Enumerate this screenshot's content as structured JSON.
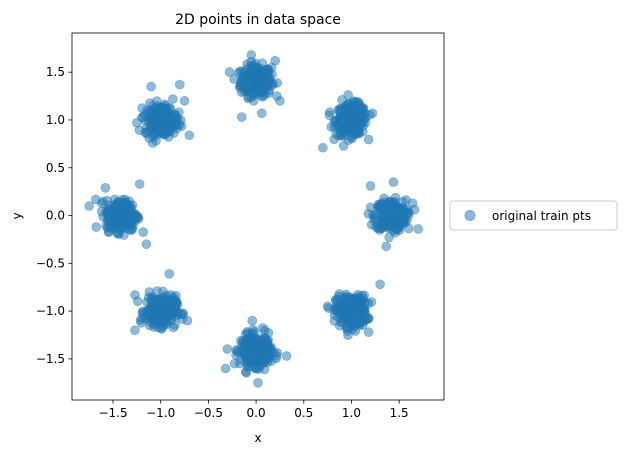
{
  "chart_data": {
    "type": "scatter",
    "title": "2D points in data space",
    "xlabel": "x",
    "ylabel": "y",
    "xlim": [
      -1.93,
      1.97
    ],
    "ylim": [
      -1.93,
      1.91
    ],
    "xticks": [
      -1.5,
      -1.0,
      -0.5,
      0.0,
      0.5,
      1.0,
      1.5
    ],
    "xtick_labels": [
      "−1.5",
      "−1.0",
      "−0.5",
      "0.0",
      "0.5",
      "1.0",
      "1.5"
    ],
    "yticks": [
      -1.5,
      -1.0,
      -0.5,
      0.0,
      0.5,
      1.0,
      1.5
    ],
    "ytick_labels": [
      "−1.5",
      "−1.0",
      "−0.5",
      "0.0",
      "0.5",
      "1.0",
      "1.5"
    ],
    "grid": false,
    "legend_position": "right-outside",
    "series": [
      {
        "name": "original train pts",
        "color": "#1f77b4",
        "alpha": 0.5,
        "cluster_centers": [
          [
            0.0,
            1.41
          ],
          [
            1.0,
            1.0
          ],
          [
            1.41,
            0.0
          ],
          [
            1.0,
            -1.0
          ],
          [
            0.0,
            -1.41
          ],
          [
            -1.0,
            -1.0
          ],
          [
            -1.41,
            0.0
          ],
          [
            -1.0,
            1.0
          ]
        ],
        "cluster_spread": 0.08,
        "points": [
          [
            -0.15,
            1.03
          ],
          [
            0.06,
            1.07
          ],
          [
            0.25,
            1.2
          ],
          [
            -0.05,
            1.68
          ],
          [
            0.2,
            1.62
          ],
          [
            0.9,
            1.21
          ],
          [
            0.7,
            0.71
          ],
          [
            1.22,
            1.07
          ],
          [
            0.77,
            1.05
          ],
          [
            1.2,
            0.31
          ],
          [
            1.44,
            0.35
          ],
          [
            1.7,
            -0.14
          ],
          [
            1.64,
            0.13
          ],
          [
            1.18,
            -1.22
          ],
          [
            1.3,
            -0.72
          ],
          [
            0.75,
            -0.95
          ],
          [
            0.02,
            -1.75
          ],
          [
            0.32,
            -1.47
          ],
          [
            -0.32,
            -1.6
          ],
          [
            -0.04,
            -1.1
          ],
          [
            -0.91,
            -0.61
          ],
          [
            -1.27,
            -0.83
          ],
          [
            -1.27,
            -1.2
          ],
          [
            -0.72,
            -1.1
          ],
          [
            -1.75,
            0.1
          ],
          [
            -1.58,
            0.29
          ],
          [
            -1.22,
            0.33
          ],
          [
            -1.15,
            -0.3
          ],
          [
            -1.1,
            1.35
          ],
          [
            -0.8,
            1.37
          ],
          [
            -0.75,
            1.2
          ],
          [
            -0.7,
            0.84
          ],
          [
            -1.25,
            0.97
          ]
        ]
      }
    ]
  }
}
